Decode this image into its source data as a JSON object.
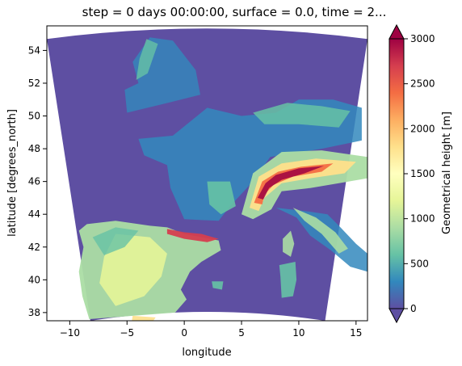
{
  "chart_data": {
    "type": "heatmap",
    "title": "step = 0 days 00:00:00, surface = 0.0, time = 2...",
    "xlabel": "longitude",
    "ylabel": "latitude [degrees_north]",
    "xlim": [
      -12,
      16
    ],
    "ylim": [
      37.5,
      55.5
    ],
    "x_ticks": [
      -10,
      -5,
      0,
      5,
      10,
      15
    ],
    "y_ticks": [
      38,
      40,
      42,
      44,
      46,
      48,
      50,
      52,
      54
    ],
    "grid": false,
    "colorbar": {
      "label": "Geometrical height [m]",
      "vmin": 0,
      "vmax": 3000,
      "extend": "both",
      "ticks": [
        0,
        500,
        1000,
        1500,
        2000,
        2500,
        3000
      ],
      "colormap": "Spectral_r",
      "colors": [
        "#5e4fa2",
        "#3288bd",
        "#66c2a5",
        "#abdda4",
        "#e6f598",
        "#ffffbf",
        "#fee08b",
        "#fdae61",
        "#f46d43",
        "#d53e4f",
        "#9e0142"
      ]
    },
    "domain_corners": {
      "top_left": [
        -12,
        54.7
      ],
      "top_right": [
        16,
        54.7
      ],
      "bottom_left": [
        -8.2,
        37.5
      ],
      "bottom_right": [
        12.3,
        37.5
      ]
    }
  }
}
